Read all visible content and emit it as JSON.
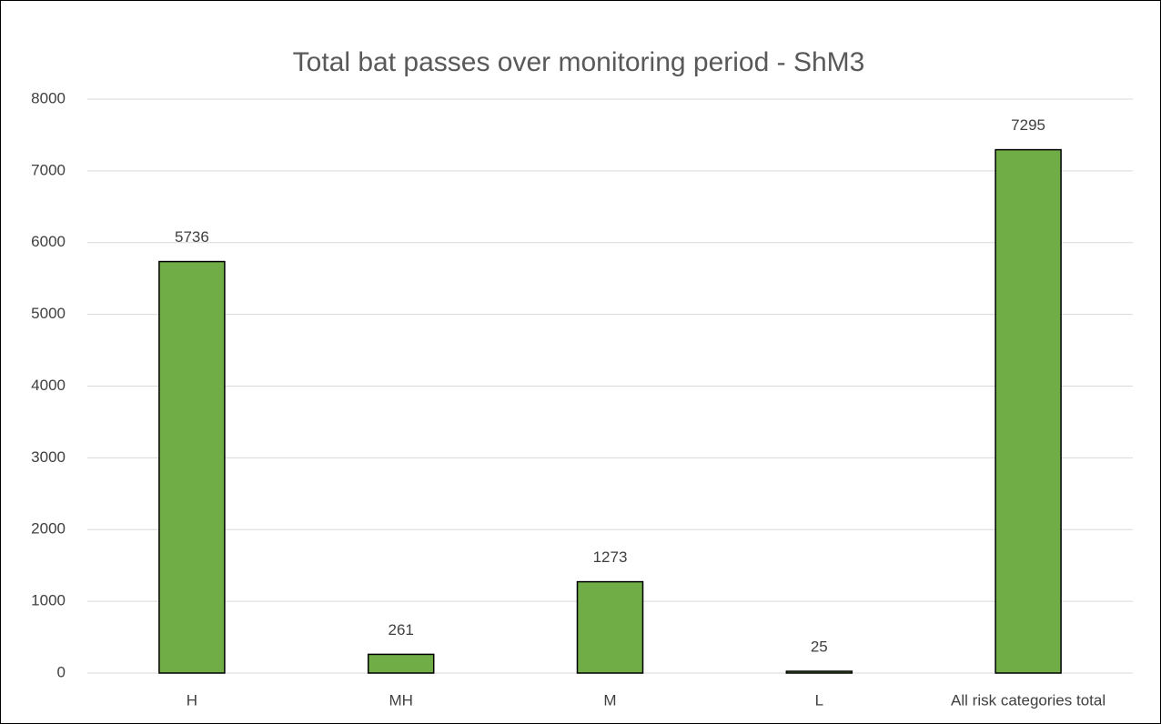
{
  "chart_data": {
    "type": "bar",
    "title": "Total bat passes over monitoring period - ShM3",
    "categories": [
      "H",
      "MH",
      "M",
      "L",
      "All risk categories total"
    ],
    "values": [
      5736,
      261,
      1273,
      25,
      7295
    ],
    "color": "#70ad47",
    "ylim": [
      0,
      8000
    ],
    "yticks": [
      0,
      1000,
      2000,
      3000,
      4000,
      5000,
      6000,
      7000,
      8000
    ],
    "grid": true
  }
}
